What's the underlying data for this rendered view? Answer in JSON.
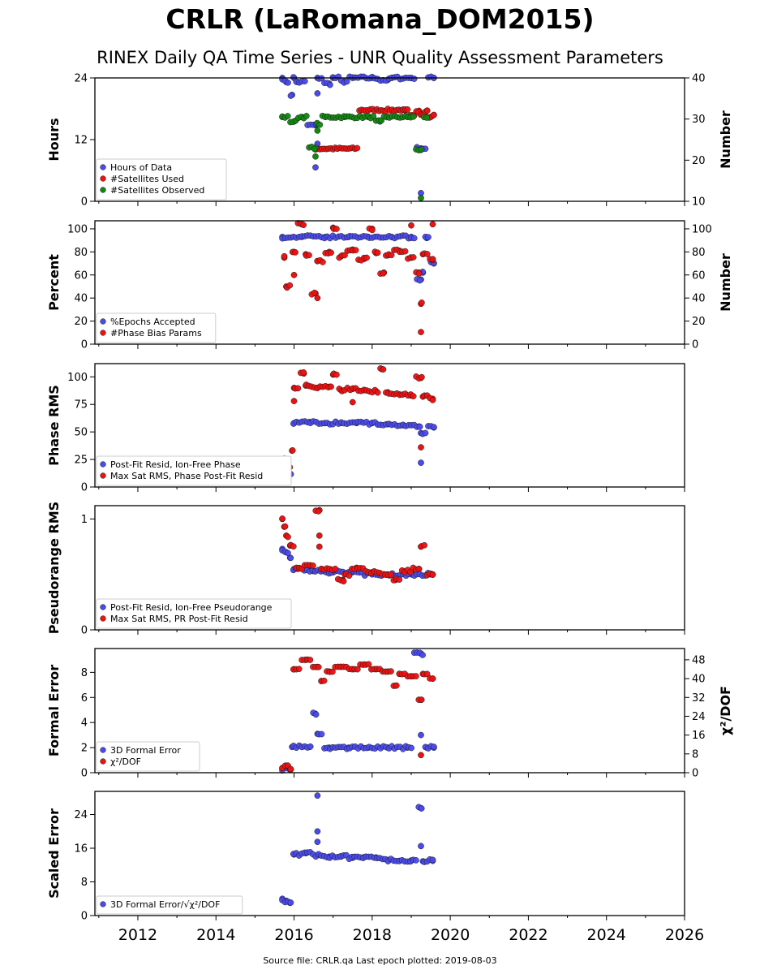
{
  "title": "CRLR (LaRomana_DOM2015)",
  "subtitle": "RINEX Daily QA Time Series - UNR Quality Assessment Parameters",
  "footer": "Source file: CRLR.qa Last epoch plotted: 2019-08-03",
  "colors": {
    "blue": "#4a4aee",
    "red": "#ee1111",
    "green": "#118811",
    "edge": "#1a1a1a"
  },
  "x_tick_labels": [
    "2012",
    "2014",
    "2016",
    "2018",
    "2020",
    "2022",
    "2024",
    "2026"
  ],
  "chart_data": [
    {
      "type": "scatter",
      "xlim": [
        2010.9,
        2026.0
      ],
      "ylabel_left": "Hours",
      "ylim_left": [
        0,
        24
      ],
      "yticks_left": [
        0,
        12,
        24
      ],
      "ylabel_right": "Number",
      "ylim_right": [
        10,
        40
      ],
      "yticks_right": [
        10,
        20,
        30,
        40
      ],
      "legend_placement": "lower-left",
      "series": [
        {
          "name": "Hours of Data",
          "color": "blue",
          "axis": "left",
          "points": [
            [
              2015.7,
              24
            ],
            [
              2016.0,
              24
            ],
            [
              2016.6,
              24
            ],
            [
              2017.0,
              24
            ],
            [
              2017.5,
              24
            ],
            [
              2018.0,
              24
            ],
            [
              2018.5,
              24
            ],
            [
              2019.0,
              24
            ],
            [
              2019.58,
              24
            ],
            [
              2015.8,
              23.2
            ],
            [
              2015.95,
              20.7
            ],
            [
              2016.1,
              23.2
            ],
            [
              2016.6,
              21
            ],
            [
              2016.9,
              22.9
            ],
            [
              2017.3,
              23.3
            ],
            [
              2018.4,
              23.6
            ],
            [
              2016.55,
              14.8
            ],
            [
              2016.6,
              11.2
            ],
            [
              2016.55,
              6.6
            ],
            [
              2019.25,
              10.3
            ],
            [
              2019.25,
              1.6
            ]
          ]
        },
        {
          "name": "#Satellites Used",
          "color": "red",
          "axis": "right",
          "points": [
            [
              2018.7,
              32.2
            ],
            [
              2018.85,
              32.1
            ],
            [
              2019.0,
              30.7
            ],
            [
              2019.2,
              32
            ],
            [
              2019.4,
              32
            ],
            [
              2019.58,
              31
            ],
            [
              2019.5,
              30.5
            ],
            [
              2016.55,
              22.8
            ],
            [
              2019.25,
              31.2
            ]
          ]
        },
        {
          "name": "#Satellites Observed",
          "color": "green",
          "axis": "right",
          "points": [
            [
              2015.7,
              30.5
            ],
            [
              2016.2,
              30.5
            ],
            [
              2016.8,
              30.5
            ],
            [
              2017.3,
              30.5
            ],
            [
              2017.9,
              30.5
            ],
            [
              2018.4,
              30.5
            ],
            [
              2018.9,
              30.5
            ],
            [
              2019.4,
              30.5
            ],
            [
              2016.0,
              29.4
            ],
            [
              2016.6,
              28.8
            ],
            [
              2016.6,
              27.2
            ],
            [
              2016.55,
              23
            ],
            [
              2016.55,
              20.9
            ],
            [
              2019.25,
              22.5
            ],
            [
              2019.25,
              10.8
            ],
            [
              2018.2,
              29.4
            ]
          ]
        }
      ]
    },
    {
      "type": "scatter",
      "xlim": [
        2010.9,
        2026.0
      ],
      "ylabel_left": "Percent",
      "ylim_left": [
        0,
        107
      ],
      "yticks_left": [
        0,
        20,
        40,
        60,
        80,
        100
      ],
      "ylabel_right": "Number",
      "ylim_right": [
        0,
        107
      ],
      "yticks_right": [
        0,
        20,
        40,
        60,
        80,
        100
      ],
      "legend_placement": "lower-left",
      "series": [
        {
          "name": "%Epochs Accepted",
          "color": "blue",
          "axis": "left",
          "points": [
            [
              2015.7,
              93
            ],
            [
              2016.2,
              93
            ],
            [
              2016.8,
              93
            ],
            [
              2017.4,
              93
            ],
            [
              2017.9,
              93
            ],
            [
              2018.5,
              93
            ],
            [
              2019.0,
              93
            ],
            [
              2019.4,
              92
            ],
            [
              2019.25,
              56
            ],
            [
              2019.3,
              62
            ],
            [
              2019.58,
              70
            ]
          ]
        },
        {
          "name": "#Phase Bias Params",
          "color": "red",
          "axis": "right",
          "points": [
            [
              2015.75,
              75
            ],
            [
              2016.0,
              80
            ],
            [
              2016.3,
              78
            ],
            [
              2016.6,
              72
            ],
            [
              2016.9,
              80
            ],
            [
              2017.2,
              76
            ],
            [
              2017.5,
              82
            ],
            [
              2017.8,
              74
            ],
            [
              2018.1,
              79
            ],
            [
              2018.4,
              77
            ],
            [
              2018.7,
              81
            ],
            [
              2019.0,
              75
            ],
            [
              2019.3,
              78
            ],
            [
              2019.55,
              73
            ],
            [
              2015.8,
              50
            ],
            [
              2016.0,
              60
            ],
            [
              2016.55,
              44
            ],
            [
              2016.6,
              40
            ],
            [
              2016.2,
              104
            ],
            [
              2017.0,
              101
            ],
            [
              2018.0,
              100
            ],
            [
              2019.0,
              103
            ],
            [
              2019.55,
              104
            ],
            [
              2019.25,
              35
            ],
            [
              2019.25,
              10.5
            ],
            [
              2018.3,
              62
            ],
            [
              2019.2,
              62
            ]
          ]
        }
      ]
    },
    {
      "type": "scatter",
      "xlim": [
        2010.9,
        2026.0
      ],
      "ylabel_left": "Phase RMS",
      "ylim_left": [
        0,
        112
      ],
      "yticks_left": [
        0,
        25,
        50,
        75,
        100
      ],
      "legend_placement": "lower-left",
      "series": [
        {
          "name": "Post-Fit Resid, Ion-Free Phase",
          "color": "blue",
          "axis": "left",
          "points": [
            [
              2016.0,
              58
            ],
            [
              2016.4,
              59
            ],
            [
              2016.8,
              58
            ],
            [
              2017.2,
              58
            ],
            [
              2017.6,
              58
            ],
            [
              2018.0,
              58
            ],
            [
              2018.4,
              57
            ],
            [
              2018.8,
              56
            ],
            [
              2019.2,
              55
            ],
            [
              2019.58,
              54
            ],
            [
              2015.7,
              20
            ],
            [
              2015.8,
              15
            ],
            [
              2015.9,
              12
            ],
            [
              2019.25,
              49
            ],
            [
              2019.25,
              22
            ]
          ]
        },
        {
          "name": "Max Sat RMS, Phase Post-Fit Resid",
          "color": "red",
          "axis": "left",
          "points": [
            [
              2016.0,
              90
            ],
            [
              2016.3,
              92
            ],
            [
              2016.6,
              90
            ],
            [
              2016.9,
              91
            ],
            [
              2017.2,
              88
            ],
            [
              2017.5,
              89
            ],
            [
              2017.8,
              88
            ],
            [
              2018.1,
              87
            ],
            [
              2018.4,
              86
            ],
            [
              2018.7,
              84
            ],
            [
              2019.0,
              83
            ],
            [
              2019.3,
              82
            ],
            [
              2019.55,
              80
            ],
            [
              2016.25,
              103
            ],
            [
              2017.0,
              102
            ],
            [
              2018.25,
              107
            ],
            [
              2019.25,
              99
            ],
            [
              2019.25,
              36
            ],
            [
              2015.75,
              25
            ],
            [
              2015.85,
              18
            ],
            [
              2015.95,
              33
            ],
            [
              2016.0,
              78
            ],
            [
              2017.5,
              77
            ]
          ]
        }
      ]
    },
    {
      "type": "scatter",
      "xlim": [
        2010.9,
        2026.0
      ],
      "ylabel_left": "Pseudorange RMS",
      "ylim_left": [
        0,
        1.12
      ],
      "yticks_left": [
        0,
        1
      ],
      "legend_placement": "lower-left",
      "series": [
        {
          "name": "Post-Fit Resid, Ion-Free Pseudorange",
          "color": "blue",
          "axis": "left",
          "points": [
            [
              2015.7,
              0.73
            ],
            [
              2015.8,
              0.7
            ],
            [
              2015.9,
              0.65
            ],
            [
              2016.0,
              0.55
            ],
            [
              2016.5,
              0.53
            ],
            [
              2017.0,
              0.52
            ],
            [
              2017.5,
              0.52
            ],
            [
              2018.0,
              0.5
            ],
            [
              2018.5,
              0.5
            ],
            [
              2019.0,
              0.5
            ],
            [
              2019.5,
              0.5
            ]
          ]
        },
        {
          "name": "Max Sat RMS, PR Post-Fit Resid",
          "color": "red",
          "axis": "left",
          "points": [
            [
              2015.7,
              1.0
            ],
            [
              2015.75,
              0.93
            ],
            [
              2015.8,
              0.85
            ],
            [
              2015.9,
              0.76
            ],
            [
              2016.1,
              0.55
            ],
            [
              2016.4,
              0.58
            ],
            [
              2016.7,
              0.55
            ],
            [
              2017.0,
              0.54
            ],
            [
              2017.3,
              0.5
            ],
            [
              2017.6,
              0.56
            ],
            [
              2018.0,
              0.52
            ],
            [
              2018.4,
              0.5
            ],
            [
              2018.8,
              0.53
            ],
            [
              2019.2,
              0.55
            ],
            [
              2019.55,
              0.5
            ],
            [
              2016.65,
              1.08
            ],
            [
              2016.65,
              0.85
            ],
            [
              2016.65,
              0.75
            ],
            [
              2019.25,
              0.75
            ],
            [
              2017.25,
              0.45
            ],
            [
              2018.6,
              0.45
            ]
          ]
        }
      ]
    },
    {
      "type": "scatter",
      "xlim": [
        2010.9,
        2026.0
      ],
      "ylabel_left": "Formal Error",
      "ylim_left": [
        0,
        9.9
      ],
      "yticks_left": [
        0,
        2,
        4,
        6,
        8
      ],
      "ylabel_right": "χ²/DOF",
      "ylim_right": [
        0,
        52.8
      ],
      "yticks_right": [
        0,
        8,
        16,
        24,
        32,
        40,
        48
      ],
      "legend_placement": "lower-left",
      "series": [
        {
          "name": "3D Formal Error",
          "color": "blue",
          "axis": "left",
          "points": [
            [
              2015.95,
              2.05
            ],
            [
              2016.4,
              2.05
            ],
            [
              2016.9,
              2.0
            ],
            [
              2017.4,
              2.0
            ],
            [
              2017.9,
              2.0
            ],
            [
              2018.4,
              2.0
            ],
            [
              2018.9,
              2.0
            ],
            [
              2019.4,
              2.0
            ],
            [
              2019.58,
              2.0
            ],
            [
              2015.7,
              0.3
            ],
            [
              2015.8,
              0.4
            ],
            [
              2015.9,
              0.25
            ],
            [
              2016.55,
              4.7
            ],
            [
              2016.6,
              3.1
            ],
            [
              2019.25,
              9.5
            ],
            [
              2019.25,
              3.0
            ]
          ]
        },
        {
          "name": "χ²/DOF",
          "color": "red",
          "axis": "right",
          "points": [
            [
              2016.0,
              44
            ],
            [
              2016.3,
              48
            ],
            [
              2016.6,
              45
            ],
            [
              2016.9,
              43
            ],
            [
              2017.2,
              45
            ],
            [
              2017.5,
              44
            ],
            [
              2017.8,
              46
            ],
            [
              2018.1,
              44
            ],
            [
              2018.4,
              43
            ],
            [
              2018.7,
              42
            ],
            [
              2019.0,
              41
            ],
            [
              2019.3,
              42
            ],
            [
              2019.55,
              40
            ],
            [
              2015.7,
              2
            ],
            [
              2015.8,
              3
            ],
            [
              2015.9,
              1.5
            ],
            [
              2019.25,
              31
            ],
            [
              2019.25,
              7.5
            ],
            [
              2016.7,
              39
            ],
            [
              2018.6,
              37
            ]
          ]
        }
      ]
    },
    {
      "type": "scatter",
      "xlim": [
        2010.9,
        2026.0
      ],
      "ylabel_left": "Scaled Error",
      "ylim_left": [
        0,
        29.5
      ],
      "yticks_left": [
        0,
        8,
        16,
        24
      ],
      "legend_placement": "lower-left",
      "series": [
        {
          "name": "3D Formal Error/√χ²/DOF",
          "color": "blue",
          "axis": "left",
          "points": [
            [
              2016.0,
              14.5
            ],
            [
              2016.3,
              14.8
            ],
            [
              2016.6,
              14.3
            ],
            [
              2016.9,
              14.0
            ],
            [
              2017.2,
              14.0
            ],
            [
              2017.5,
              13.7
            ],
            [
              2017.8,
              13.9
            ],
            [
              2018.1,
              13.8
            ],
            [
              2018.4,
              13.2
            ],
            [
              2018.7,
              13.0
            ],
            [
              2019.0,
              13.1
            ],
            [
              2019.3,
              12.9
            ],
            [
              2019.55,
              13.0
            ],
            [
              2015.7,
              4.0
            ],
            [
              2015.8,
              3.5
            ],
            [
              2015.9,
              3.0
            ],
            [
              2016.6,
              28.5
            ],
            [
              2016.6,
              20
            ],
            [
              2016.6,
              17.5
            ],
            [
              2019.25,
              25.5
            ],
            [
              2019.25,
              16.5
            ]
          ]
        }
      ]
    }
  ]
}
